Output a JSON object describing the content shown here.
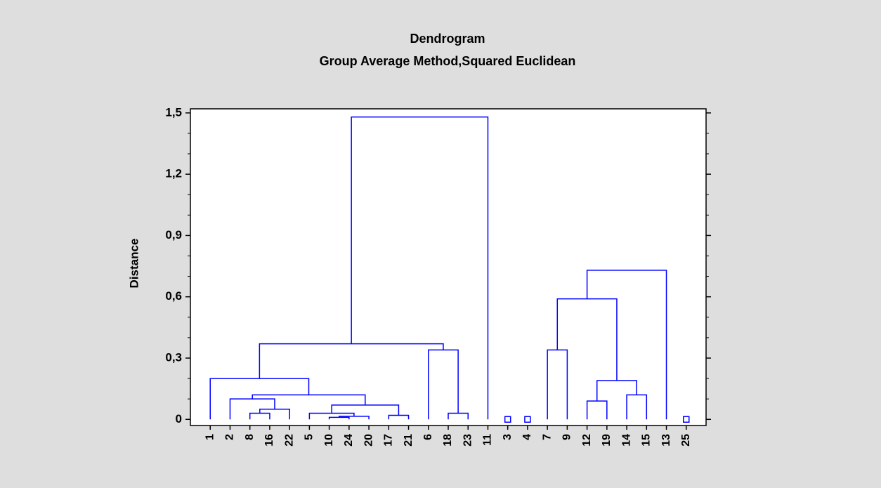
{
  "chart_data": {
    "type": "dendrogram",
    "title": "Dendrogram",
    "subtitle": "Group Average Method,Squared Euclidean",
    "y_label": "Distance",
    "categories": [
      "1",
      "2",
      "8",
      "16",
      "22",
      "5",
      "10",
      "24",
      "20",
      "17",
      "21",
      "6",
      "18",
      "23",
      "11",
      "3",
      "4",
      "7",
      "9",
      "12",
      "19",
      "14",
      "15",
      "13",
      "25"
    ],
    "merges": [
      {
        "left": 2,
        "right": 3,
        "height": 0.03
      },
      {
        "left": 25,
        "right": 4,
        "height": 0.05
      },
      {
        "left": 1,
        "right": 26,
        "height": 0.1
      },
      {
        "left": 6,
        "right": 7,
        "height": 0.01
      },
      {
        "left": 28,
        "right": 8,
        "height": 0.015
      },
      {
        "left": 5,
        "right": 29,
        "height": 0.03
      },
      {
        "left": 9,
        "right": 10,
        "height": 0.02
      },
      {
        "left": 30,
        "right": 31,
        "height": 0.07
      },
      {
        "left": 27,
        "right": 32,
        "height": 0.12
      },
      {
        "left": 0,
        "right": 33,
        "height": 0.2
      },
      {
        "left": 12,
        "right": 13,
        "height": 0.03
      },
      {
        "left": 11,
        "right": 35,
        "height": 0.34
      },
      {
        "left": 34,
        "right": 36,
        "height": 0.37
      },
      {
        "left": 37,
        "right": 14,
        "height": 1.48
      },
      {
        "left": 17,
        "right": 18,
        "height": 0.34
      },
      {
        "left": 19,
        "right": 20,
        "height": 0.09
      },
      {
        "left": 21,
        "right": 22,
        "height": 0.12
      },
      {
        "left": 40,
        "right": 41,
        "height": 0.19
      },
      {
        "left": 39,
        "right": 42,
        "height": 0.59
      },
      {
        "left": 43,
        "right": 23,
        "height": 0.73
      }
    ],
    "color": "#0000ff",
    "ylim": [
      -0.03,
      1.52
    ],
    "yticks": [
      0,
      {
        "value": 0.3,
        "label": "0,3"
      },
      {
        "value": 0.6,
        "label": "0,6"
      },
      {
        "value": 0.9,
        "label": "0,9"
      },
      {
        "value": 1.2,
        "label": "1,2"
      },
      {
        "value": 1.5,
        "label": "1,5"
      }
    ],
    "yminorticks": [
      0.1,
      0.2,
      0.4,
      0.5,
      0.7,
      0.8,
      1.0,
      1.1,
      1.3,
      1.4
    ]
  }
}
